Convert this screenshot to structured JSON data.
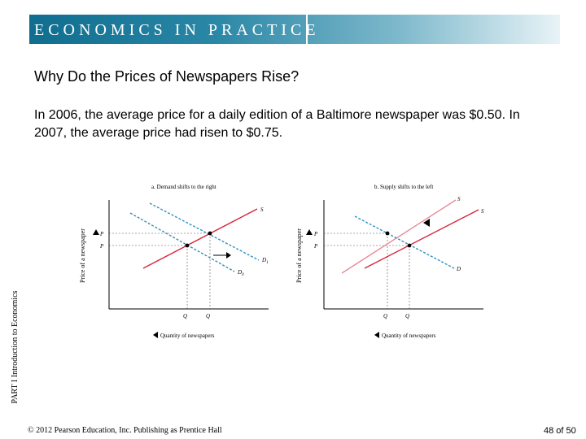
{
  "header": {
    "banner": "ECONOMICS IN PRACTICE"
  },
  "title": "Why Do the Prices of Newspapers Rise?",
  "body": "In 2006, the average price for a daily edition of a Baltimore newspaper was $0.50. In 2007, the average price had risen to $0.75.",
  "side_label": {
    "part": "PART I",
    "text": "Introduction to Economics"
  },
  "figure": {
    "panel_a": {
      "title": "a. Demand shifts to the right",
      "ylabel": "Price of a newspaper",
      "xlabel": "Quantity of newspapers",
      "supply": "S",
      "demand0": "D",
      "demand1": "D",
      "d0_sub": "0",
      "d1_sub": "1",
      "p1": "P",
      "p0": "P",
      "q0": "Q",
      "q1": "Q"
    },
    "panel_b": {
      "title": "b. Supply shifts to the left",
      "ylabel": "Price of a newspaper",
      "xlabel": "Quantity of newspapers",
      "supply0": "S",
      "supply1": "S",
      "demand": "D",
      "p1": "P",
      "p0": "P",
      "q1": "Q",
      "q0": "Q"
    },
    "colors": {
      "supply": "#d9243c",
      "supply_light": "#e88a98",
      "demand": "#2f8fc0"
    }
  },
  "footer": {
    "copyright": "© 2012 Pearson Education, Inc. Publishing as Prentice Hall",
    "page": "48 of 50"
  }
}
